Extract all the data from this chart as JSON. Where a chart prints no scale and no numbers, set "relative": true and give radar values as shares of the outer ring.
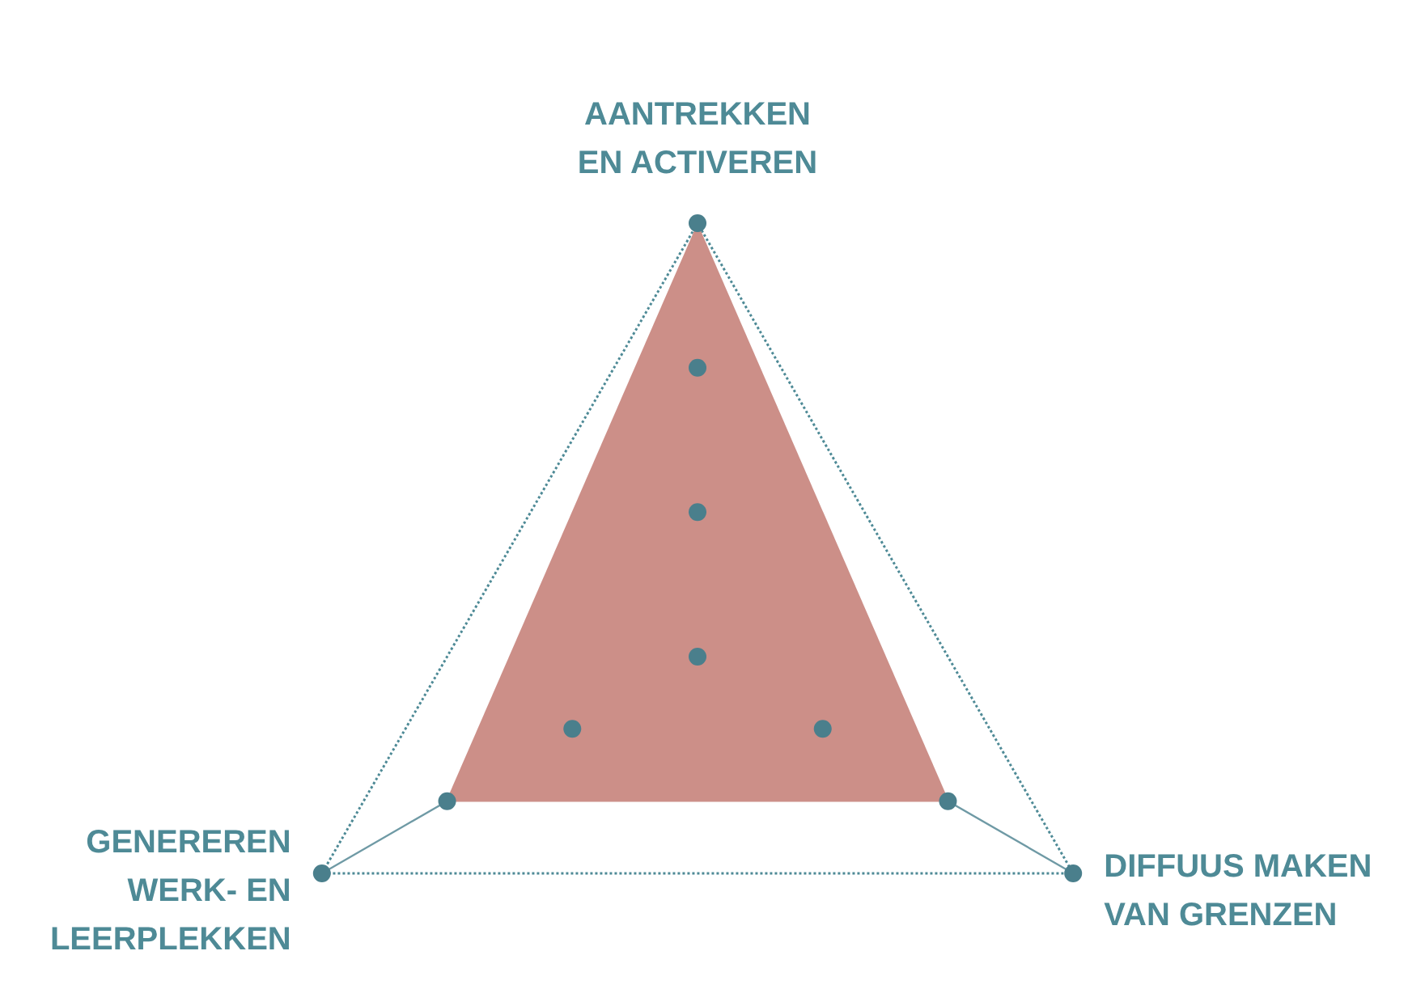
{
  "chart_data": {
    "type": "radar",
    "relative": true,
    "categories": [
      "AANTREKKEN\nEN ACTIVEREN",
      "DIFFUUS MAKEN\nVAN GRENZEN",
      "GENEREREN\nWERK- EN\nLEERPLEKKEN"
    ],
    "series": [
      {
        "color": "#cc8f88",
        "values": [
          1,
          0.67,
          0.67
        ]
      }
    ],
    "marker": "none"
  }
}
